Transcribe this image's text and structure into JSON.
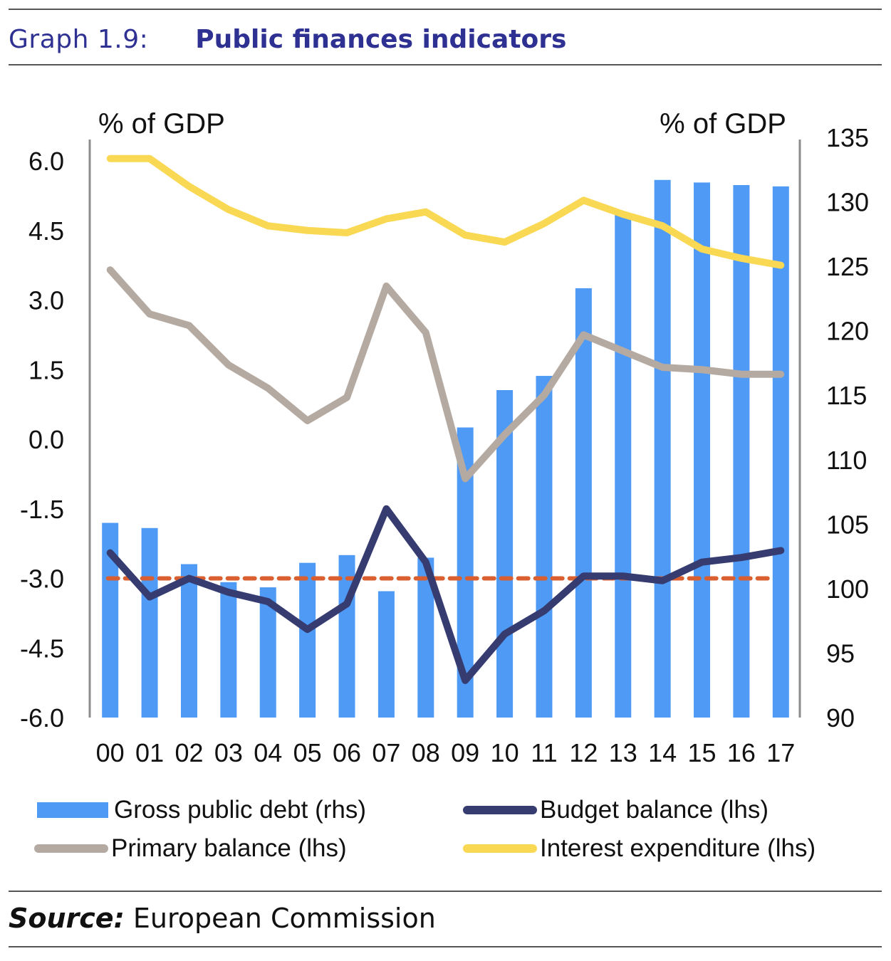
{
  "header": {
    "prefix": "Graph 1.9:",
    "title": "Public finances indicators"
  },
  "footer": {
    "source_label": "Source:",
    "source_text": "European Commission"
  },
  "colors": {
    "debt_bar": "#4f9af5",
    "budget_balance": "#363b70",
    "primary_balance": "#b5aaa2",
    "interest_expenditure": "#f9d853",
    "reference_line": "#d95f30",
    "title": "#2e3192"
  },
  "chart_data": {
    "type": "bar+line",
    "title": "Public finances indicators",
    "categories": [
      "00",
      "01",
      "02",
      "03",
      "04",
      "05",
      "06",
      "07",
      "08",
      "09",
      "10",
      "11",
      "12",
      "13",
      "14",
      "15",
      "16",
      "17"
    ],
    "left_axis": {
      "label": "% of GDP",
      "ylim": [
        -6.0,
        6.0
      ],
      "ticks": [
        "6.0",
        "4.5",
        "3.0",
        "1.5",
        "0.0",
        "-1.5",
        "-3.0",
        "-4.5",
        "-6.0"
      ]
    },
    "right_axis": {
      "label": "% of GDP",
      "ylim": [
        90,
        135
      ],
      "ticks": [
        "135",
        "130",
        "125",
        "120",
        "115",
        "110",
        "105",
        "100",
        "95",
        "90"
      ]
    },
    "grid": false,
    "series": [
      {
        "name": "Gross public debt (rhs)",
        "type": "bar",
        "axis": "right",
        "values": [
          105.1,
          104.7,
          101.9,
          100.5,
          100.1,
          102.0,
          102.6,
          99.8,
          102.4,
          112.5,
          115.4,
          116.5,
          123.3,
          129.0,
          131.7,
          131.5,
          131.3,
          131.2
        ]
      },
      {
        "name": "Budget balance (lhs)",
        "type": "line",
        "axis": "left",
        "values": [
          -2.45,
          -3.4,
          -3.0,
          -3.3,
          -3.5,
          -4.1,
          -3.55,
          -1.5,
          -2.65,
          -5.2,
          -4.2,
          -3.7,
          -2.95,
          -2.95,
          -3.05,
          -2.65,
          -2.55,
          -2.4
        ]
      },
      {
        "name": "Primary balance (lhs)",
        "type": "line",
        "axis": "left",
        "values": [
          3.65,
          2.7,
          2.45,
          1.6,
          1.1,
          0.4,
          0.9,
          3.3,
          2.3,
          -0.85,
          0.1,
          0.95,
          2.25,
          1.9,
          1.55,
          1.5,
          1.4,
          1.4
        ]
      },
      {
        "name": "Interest expenditure (lhs)",
        "type": "line",
        "axis": "left",
        "values": [
          6.05,
          6.05,
          5.45,
          4.95,
          4.6,
          4.5,
          4.45,
          4.75,
          4.9,
          4.4,
          4.25,
          4.65,
          5.15,
          4.85,
          4.6,
          4.1,
          3.9,
          3.75
        ]
      }
    ],
    "reference_line": {
      "axis": "left",
      "value": -3.0,
      "style": "dashed"
    },
    "legend": {
      "placement": "bottom",
      "items": [
        {
          "label": "Gross public debt (rhs)",
          "kind": "bar"
        },
        {
          "label": "Budget balance (lhs)",
          "kind": "line"
        },
        {
          "label": "Primary balance (lhs)",
          "kind": "line"
        },
        {
          "label": "Interest expenditure (lhs)",
          "kind": "line"
        }
      ]
    }
  }
}
